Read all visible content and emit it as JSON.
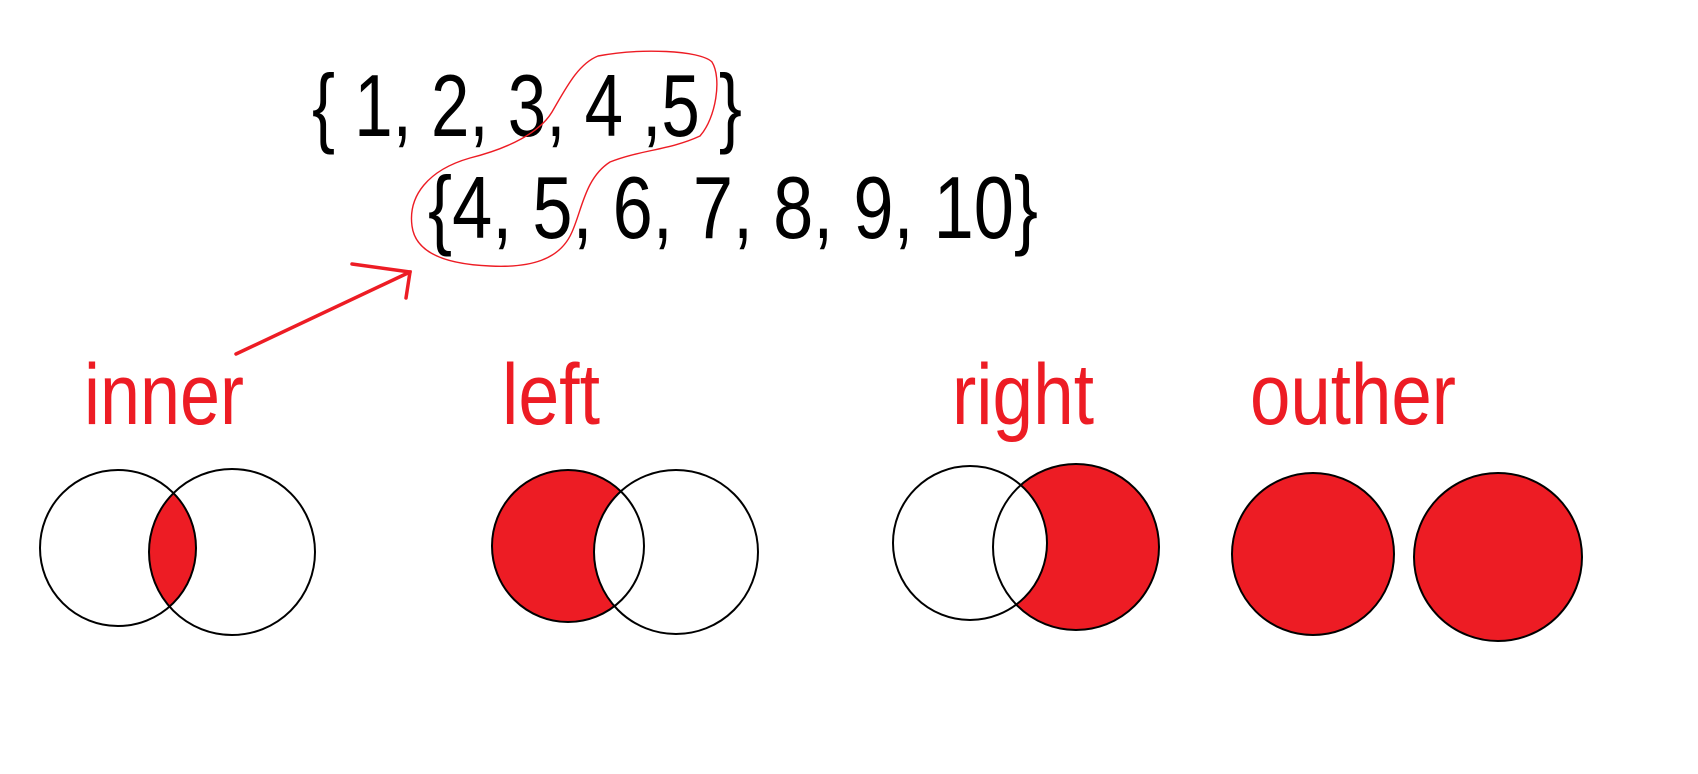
{
  "colors": {
    "highlight": "#ed1c24",
    "outline": "#000000",
    "text": "#000000",
    "background": "#ffffff"
  },
  "sets": {
    "set_a": "{ 1, 2, 3, 4 ,5 }",
    "set_b": "{4, 5, 6, 7, 8, 9, 10}"
  },
  "joins": [
    {
      "label": "inner",
      "fill": "intersection"
    },
    {
      "label": "left",
      "fill": "left-only"
    },
    {
      "label": "right",
      "fill": "right-only"
    },
    {
      "label": "outher",
      "fill": "symmetric-difference"
    }
  ]
}
